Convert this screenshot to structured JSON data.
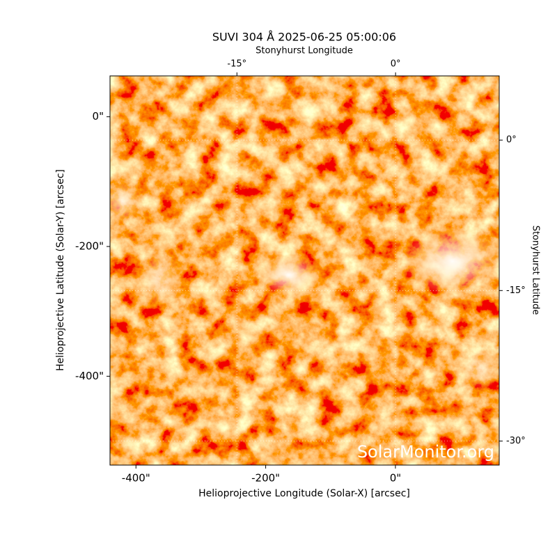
{
  "chart_data": {
    "type": "image",
    "title": "SUVI 304 Å 2025-06-25 05:00:06",
    "x_label": "Helioprojective Longitude (Solar-X) [arcsec]",
    "y_label": "Helioprojective Latitude (Solar-Y) [arcsec]",
    "x2_label": "Stonyhurst Longitude",
    "y2_label": "Stonyhurst Latitude",
    "xlim": [
      -440,
      160
    ],
    "ylim": [
      -537,
      63
    ],
    "xticks": [
      {
        "value": -400,
        "label": "-400\""
      },
      {
        "value": -200,
        "label": "-200\""
      },
      {
        "value": 0,
        "label": "0\""
      }
    ],
    "yticks": [
      {
        "value": 0,
        "label": "0\""
      },
      {
        "value": -200,
        "label": "-200\""
      },
      {
        "value": -400,
        "label": "-400\""
      }
    ],
    "x2lim": [
      -27,
      9.8
    ],
    "x2ticks": [
      {
        "value": -15,
        "label": "-15°"
      },
      {
        "value": 0,
        "label": "0°"
      }
    ],
    "y2lim": [
      6.4,
      -32.4
    ],
    "y2ticks": [
      {
        "value": 0,
        "label": "0°"
      },
      {
        "value": -15,
        "label": "-15°"
      },
      {
        "value": -30,
        "label": "-30°"
      }
    ],
    "grid": true,
    "annotation": "SolarMonitor.org"
  }
}
